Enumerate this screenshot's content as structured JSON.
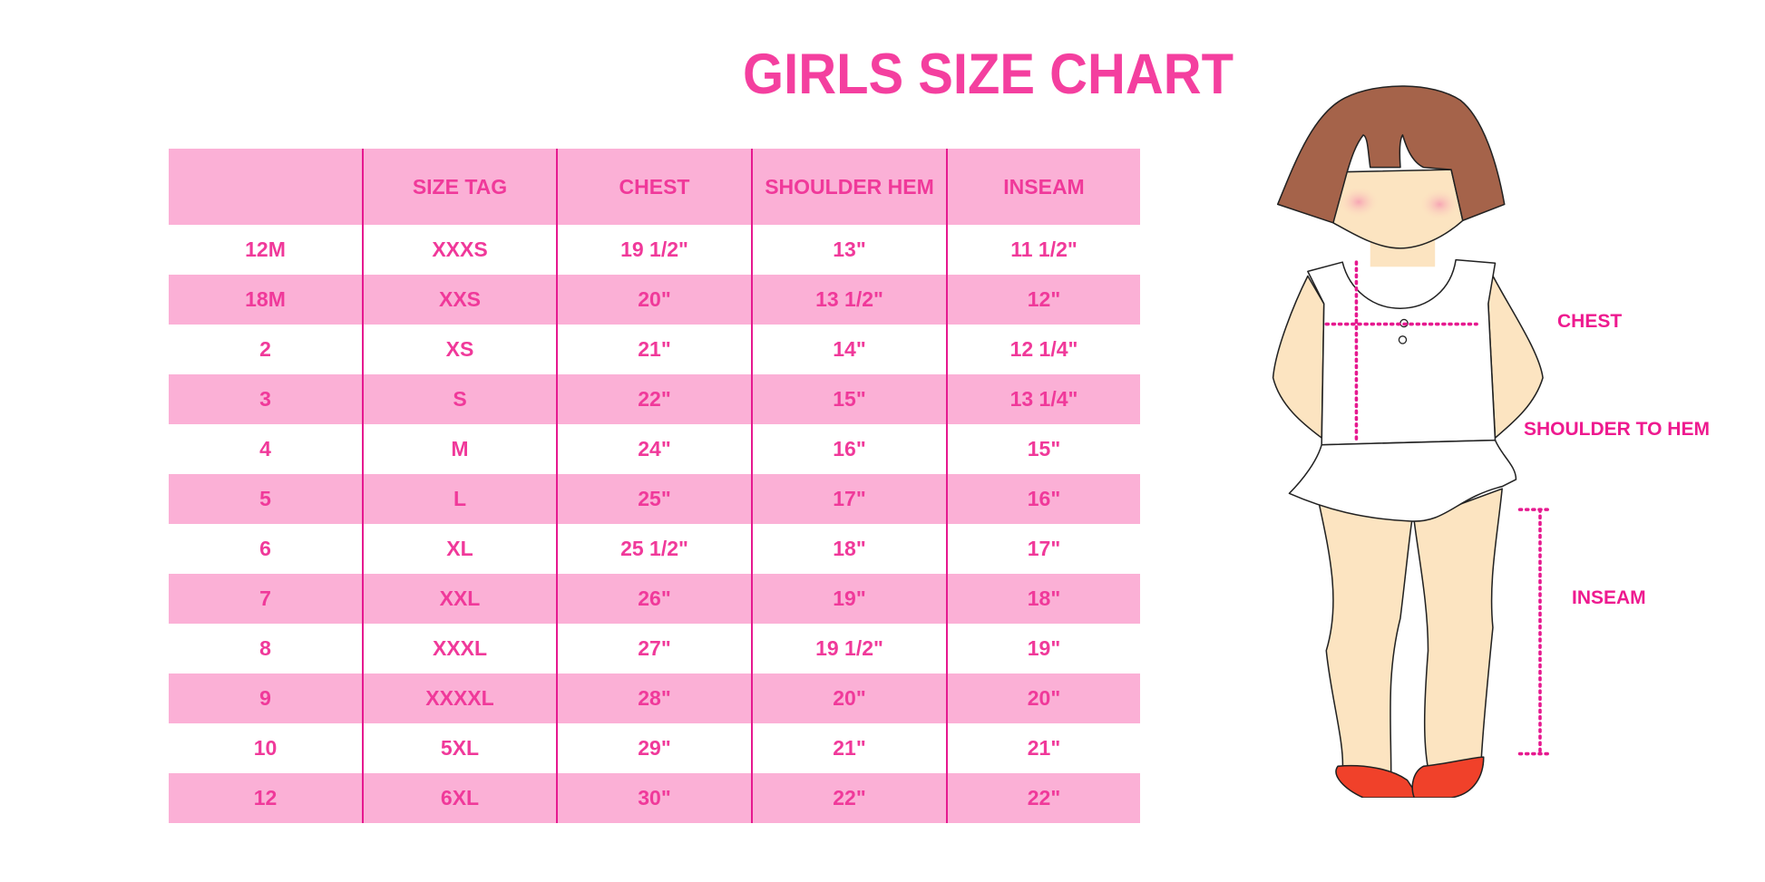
{
  "title": "GIRLS SIZE CHART",
  "table": {
    "headers": [
      "",
      "SIZE TAG",
      "CHEST",
      "SHOULDER HEM",
      "INSEAM"
    ],
    "rows": [
      [
        "12M",
        "XXXS",
        "19 1/2\"",
        "13\"",
        "11 1/2\""
      ],
      [
        "18M",
        "XXS",
        "20\"",
        "13 1/2\"",
        "12\""
      ],
      [
        "2",
        "XS",
        "21\"",
        "14\"",
        "12 1/4\""
      ],
      [
        "3",
        "S",
        "22\"",
        "15\"",
        "13 1/4\""
      ],
      [
        "4",
        "M",
        "24\"",
        "16\"",
        "15\""
      ],
      [
        "5",
        "L",
        "25\"",
        "17\"",
        "16\""
      ],
      [
        "6",
        "XL",
        "25 1/2\"",
        "18\"",
        "17\""
      ],
      [
        "7",
        "XXL",
        "26\"",
        "19\"",
        "18\""
      ],
      [
        "8",
        "XXXL",
        "27\"",
        "19 1/2\"",
        "19\""
      ],
      [
        "9",
        "XXXXL",
        "28\"",
        "20\"",
        "20\""
      ],
      [
        "10",
        "5XL",
        "29\"",
        "21\"",
        "21\""
      ],
      [
        "12",
        "6XL",
        "30\"",
        "22\"",
        "22\""
      ]
    ]
  },
  "figure": {
    "labels": {
      "chest": "CHEST",
      "shoulder_to_hem": "SHOULDER TO HEM",
      "inseam": "INSEAM"
    }
  },
  "colors": {
    "title": "#f43f9f",
    "header_bg": "#fbb0d6",
    "divider": "#e6198f",
    "label": "#ee1a8f"
  }
}
